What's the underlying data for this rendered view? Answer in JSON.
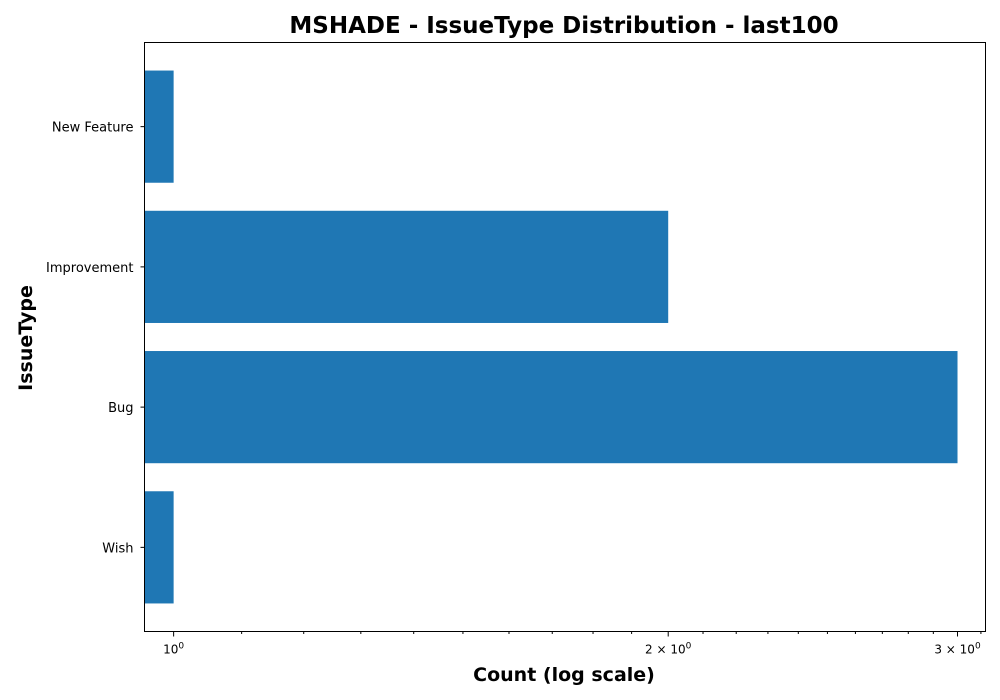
{
  "chart_data": {
    "type": "bar",
    "orientation": "horizontal",
    "title": "MSHADE - IssueType Distribution - last100",
    "xlabel": "Count (log scale)",
    "ylabel": "IssueType",
    "x_scale": "log",
    "xlim": [
      0.96,
      3.12
    ],
    "categories": [
      "Wish",
      "Bug",
      "Improvement",
      "New Feature"
    ],
    "values": [
      1,
      3,
      2,
      1
    ],
    "bar_color": "#1f77b4",
    "x_ticks": [
      {
        "value": 1,
        "label": "10"
      },
      {
        "value": 2,
        "label": "2 × 10"
      },
      {
        "value": 3,
        "label": "3 × 10"
      }
    ],
    "x_tick_exponent": "0",
    "grid": false,
    "legend": "none"
  }
}
